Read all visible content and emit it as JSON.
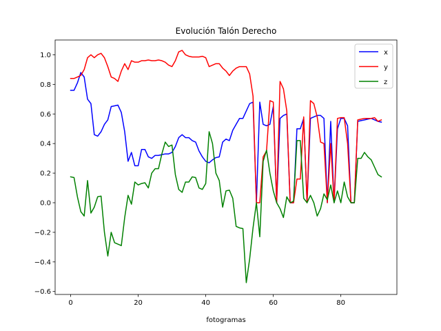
{
  "chart_data": {
    "type": "line",
    "title": "Evolución Talón Derecho",
    "xlabel": "fotogramas",
    "ylabel": "",
    "xlim": [
      -4.6,
      96.6
    ],
    "ylim": [
      -0.62,
      1.1
    ],
    "xticks": [
      0,
      20,
      40,
      60,
      80
    ],
    "xtick_labels": [
      "0",
      "20",
      "40",
      "60",
      "80"
    ],
    "yticks": [
      -0.6,
      -0.4,
      -0.2,
      0.0,
      0.2,
      0.4,
      0.6,
      0.8,
      1.0
    ],
    "ytick_labels": [
      "−0.6",
      "−0.4",
      "−0.2",
      "0.0",
      "0.2",
      "0.4",
      "0.6",
      "0.8",
      "1.0"
    ],
    "grid": false,
    "legend_position": "top-right",
    "x": [
      0,
      1,
      2,
      3,
      4,
      5,
      6,
      7,
      8,
      9,
      10,
      11,
      12,
      13,
      14,
      15,
      16,
      17,
      18,
      19,
      20,
      21,
      22,
      23,
      24,
      25,
      26,
      27,
      28,
      29,
      30,
      31,
      32,
      33,
      34,
      35,
      36,
      37,
      38,
      39,
      40,
      41,
      42,
      43,
      44,
      45,
      46,
      47,
      48,
      49,
      50,
      51,
      52,
      53,
      54,
      55,
      56,
      57,
      58,
      59,
      60,
      61,
      62,
      63,
      64,
      65,
      66,
      67,
      68,
      69,
      70,
      71,
      72,
      73,
      74,
      75,
      76,
      77,
      78,
      79,
      80,
      81,
      82,
      83,
      84,
      85,
      86,
      87,
      88,
      89,
      90,
      91,
      92
    ],
    "series": [
      {
        "name": "x",
        "color": "#0000ff",
        "values": [
          0.76,
          0.76,
          0.81,
          0.88,
          0.85,
          0.7,
          0.67,
          0.46,
          0.45,
          0.48,
          0.53,
          0.56,
          0.65,
          0.655,
          0.66,
          0.61,
          0.48,
          0.28,
          0.34,
          0.25,
          0.25,
          0.36,
          0.36,
          0.31,
          0.3,
          0.32,
          0.32,
          0.325,
          0.33,
          0.33,
          0.34,
          0.38,
          0.44,
          0.46,
          0.44,
          0.44,
          0.42,
          0.41,
          0.35,
          0.31,
          0.28,
          0.27,
          0.29,
          0.305,
          0.31,
          0.41,
          0.43,
          0.42,
          0.49,
          0.53,
          0.57,
          0.57,
          0.62,
          0.67,
          0.68,
          0.0,
          0.68,
          0.53,
          0.52,
          0.53,
          0.65,
          0.0,
          0.57,
          0.59,
          0.6,
          0.0,
          0.0,
          0.5,
          0.5,
          0.57,
          0.0,
          0.57,
          0.58,
          0.59,
          0.59,
          0.57,
          0.0,
          0.55,
          0.0,
          0.5,
          0.57,
          0.57,
          0.52,
          0.0,
          0.0,
          0.55,
          0.555,
          0.56,
          0.565,
          0.57,
          0.56,
          0.55,
          0.545
        ]
      },
      {
        "name": "y",
        "color": "#ff0000",
        "values": [
          0.84,
          0.84,
          0.85,
          0.86,
          0.9,
          0.98,
          1.0,
          0.98,
          1.0,
          1.01,
          0.98,
          0.92,
          0.85,
          0.84,
          0.82,
          0.89,
          0.94,
          0.9,
          0.96,
          0.95,
          0.95,
          0.96,
          0.96,
          0.965,
          0.96,
          0.96,
          0.965,
          0.96,
          0.95,
          0.93,
          0.92,
          0.96,
          1.02,
          1.03,
          1.0,
          0.99,
          0.985,
          0.985,
          0.985,
          0.99,
          0.98,
          0.92,
          0.93,
          0.94,
          0.94,
          0.91,
          0.89,
          0.86,
          0.89,
          0.91,
          0.92,
          0.92,
          0.92,
          0.87,
          0.72,
          0.0,
          0.0,
          0.31,
          0.35,
          0.69,
          0.68,
          0.0,
          0.82,
          0.77,
          0.62,
          0.0,
          0.0,
          0.16,
          0.16,
          0.58,
          0.0,
          0.69,
          0.67,
          0.58,
          0.41,
          0.4,
          0.0,
          0.4,
          0.0,
          0.57,
          0.575,
          0.575,
          0.4,
          0.0,
          0.0,
          0.56,
          0.565,
          0.57,
          0.57,
          0.57,
          0.575,
          0.55,
          0.56
        ]
      },
      {
        "name": "z",
        "color": "#008000",
        "values": [
          0.175,
          0.17,
          0.04,
          -0.06,
          -0.09,
          0.15,
          -0.07,
          -0.03,
          0.04,
          0.045,
          -0.2,
          -0.36,
          -0.2,
          -0.27,
          -0.28,
          -0.29,
          -0.1,
          0.05,
          -0.01,
          0.14,
          0.12,
          0.13,
          0.135,
          0.1,
          0.2,
          0.23,
          0.23,
          0.33,
          0.41,
          0.38,
          0.39,
          0.19,
          0.09,
          0.07,
          0.14,
          0.14,
          0.175,
          0.17,
          0.1,
          0.09,
          0.13,
          0.48,
          0.4,
          0.2,
          0.15,
          -0.03,
          0.08,
          0.085,
          0.03,
          -0.16,
          -0.17,
          -0.175,
          -0.54,
          -0.38,
          -0.17,
          0.0,
          -0.23,
          0.28,
          0.355,
          0.2,
          0.08,
          0.0,
          -0.04,
          -0.1,
          0.04,
          0.0,
          0.01,
          0.42,
          0.42,
          0.03,
          0.0,
          0.05,
          0.0,
          -0.09,
          -0.04,
          0.06,
          0.02,
          0.12,
          0.0,
          0.08,
          0.0,
          0.14,
          0.04,
          0.0,
          0.0,
          0.3,
          0.3,
          0.34,
          0.31,
          0.29,
          0.24,
          0.19,
          0.175
        ]
      }
    ]
  }
}
